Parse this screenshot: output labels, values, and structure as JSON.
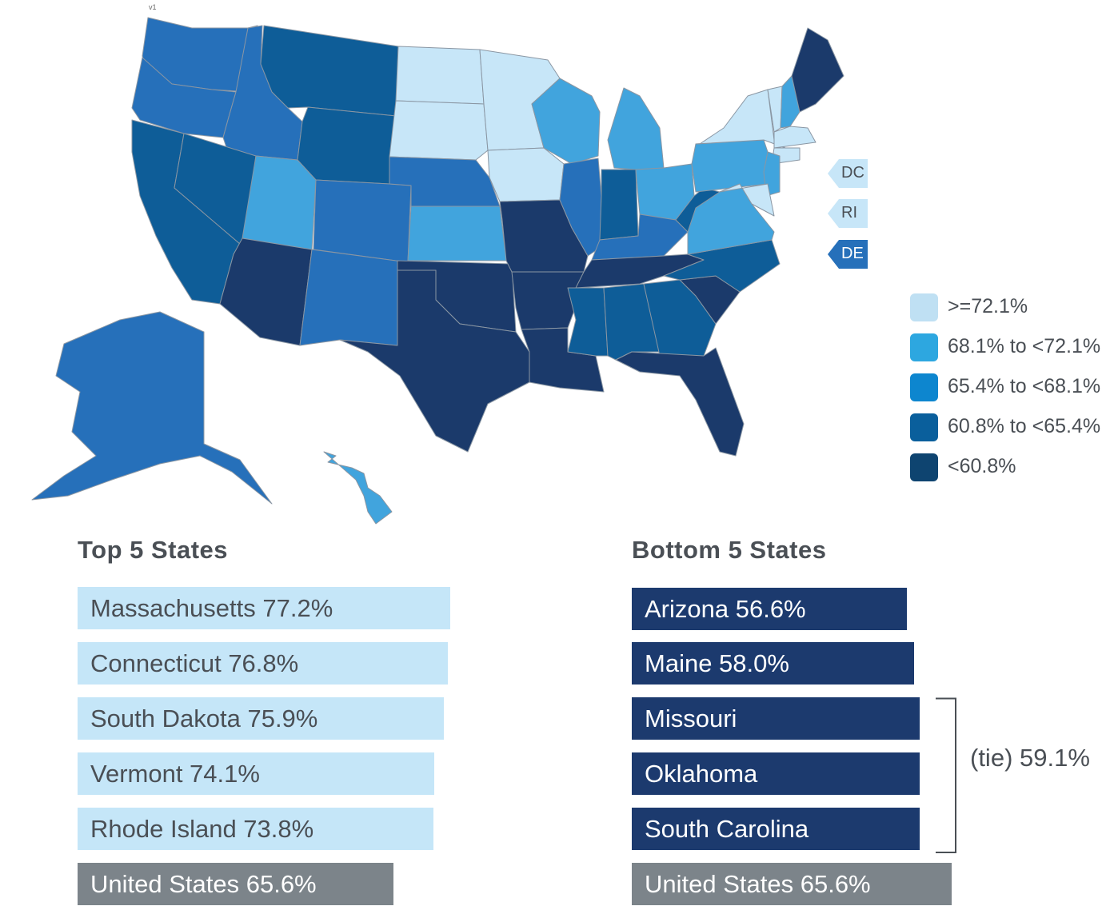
{
  "map": {
    "version_label": "v1",
    "territories": [
      {
        "name": "DC",
        "category": 0
      },
      {
        "name": "RI",
        "category": 0
      },
      {
        "name": "DE",
        "category": 2
      }
    ],
    "states": {
      "WA": 2,
      "OR": 2,
      "ID": 2,
      "MT": 3,
      "WY": 3,
      "CA": 3,
      "NV": 3,
      "UT": 1,
      "AZ": 4,
      "CO": 2,
      "NM": 2,
      "ND": 0,
      "SD": 0,
      "NE": 2,
      "KS": 1,
      "OK": 4,
      "TX": 4,
      "MN": 0,
      "IA": 0,
      "MO": 4,
      "AR": 4,
      "LA": 4,
      "WI": 1,
      "IL": 2,
      "MI": 1,
      "IN": 3,
      "OH": 1,
      "KY": 2,
      "TN": 4,
      "MS": 3,
      "AL": 3,
      "GA": 3,
      "FL": 4,
      "SC": 4,
      "NC": 3,
      "VA": 1,
      "WV": 3,
      "PA": 1,
      "NY": 0,
      "VT": 0,
      "NH": 1,
      "ME": 4,
      "MA": 0,
      "CT": 0,
      "NJ": 1,
      "MD": 0,
      "AK": 2,
      "HI": 1
    }
  },
  "legend": {
    "items": [
      {
        "label": ">=72.1%",
        "color": "#bfe0f3"
      },
      {
        "label": "68.1% to <72.1%",
        "color": "#2da7e0"
      },
      {
        "label": "65.4% to <68.1%",
        "color": "#0d86cf"
      },
      {
        "label": "60.8% to <65.4%",
        "color": "#0a5f9c"
      },
      {
        "label": "<60.8%",
        "color": "#0e4470"
      }
    ]
  },
  "map_colors": [
    "#c7e6f8",
    "#41a4dd",
    "#2670ba",
    "#0e5d98",
    "#1b3a6b"
  ],
  "top5": {
    "heading": "Top 5 States",
    "items": [
      {
        "label": "Massachusetts 77.2%",
        "value": 77.2
      },
      {
        "label": "Connecticut 76.8%",
        "value": 76.8
      },
      {
        "label": "South Dakota 75.9%",
        "value": 75.9
      },
      {
        "label": "Vermont 74.1%",
        "value": 74.1
      },
      {
        "label": "Rhode Island 73.8%",
        "value": 73.8
      }
    ],
    "us": {
      "label": "United States 65.6%",
      "value": 65.6
    }
  },
  "bottom5": {
    "heading": "Bottom 5 States",
    "items": [
      {
        "label": "Arizona 56.6%",
        "value": 56.6
      },
      {
        "label": "Maine 58.0%",
        "value": 58.0
      },
      {
        "label": "Missouri",
        "value": 59.1
      },
      {
        "label": "Oklahoma",
        "value": 59.1
      },
      {
        "label": "South Carolina",
        "value": 59.1
      }
    ],
    "tie_label": "(tie) 59.1%",
    "us": {
      "label": "United States 65.6%",
      "value": 65.6
    }
  }
}
